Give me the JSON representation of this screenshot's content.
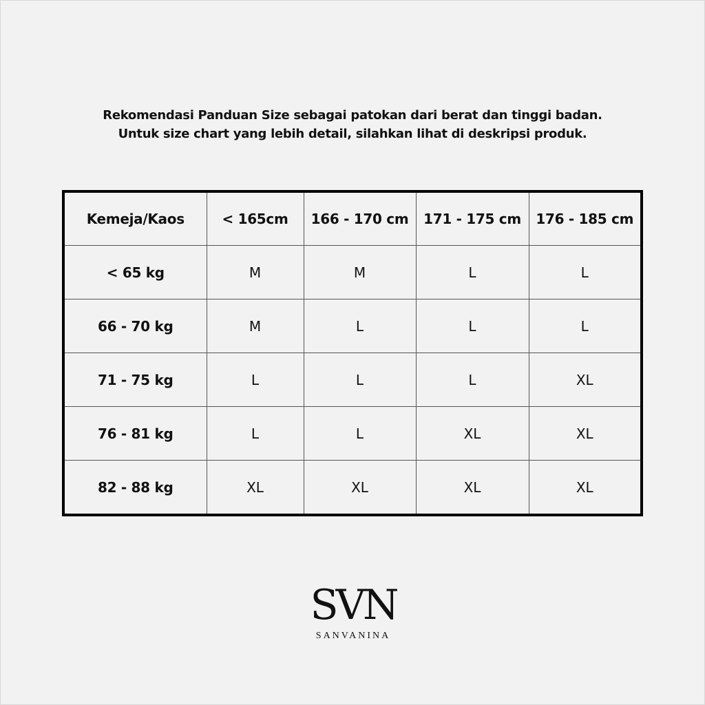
{
  "intro": {
    "line1": "Rekomendasi Panduan Size sebagai patokan dari berat dan tinggi badan.",
    "line2": "Untuk size chart yang lebih detail, silahkan lihat di deskripsi produk."
  },
  "table": {
    "corner": "Kemeja/Kaos",
    "columns": [
      "< 165cm",
      "166 - 170 cm",
      "171 - 175 cm",
      "176 - 185 cm"
    ],
    "rows": [
      {
        "label": "< 65 kg",
        "cells": [
          "M",
          "M",
          "L",
          "L"
        ]
      },
      {
        "label": "66 - 70 kg",
        "cells": [
          "M",
          "L",
          "L",
          "L"
        ]
      },
      {
        "label": "71 - 75 kg",
        "cells": [
          "L",
          "L",
          "L",
          "XL"
        ]
      },
      {
        "label": "76 - 81 kg",
        "cells": [
          "L",
          "L",
          "XL",
          "XL"
        ]
      },
      {
        "label": "82 - 88 kg",
        "cells": [
          "XL",
          "XL",
          "XL",
          "XL"
        ]
      }
    ]
  },
  "logo": {
    "mark": "SVN",
    "name": "SANVANINA"
  },
  "colors": {
    "background": "#f2f2f2",
    "text": "#111111",
    "border": "#000000"
  }
}
